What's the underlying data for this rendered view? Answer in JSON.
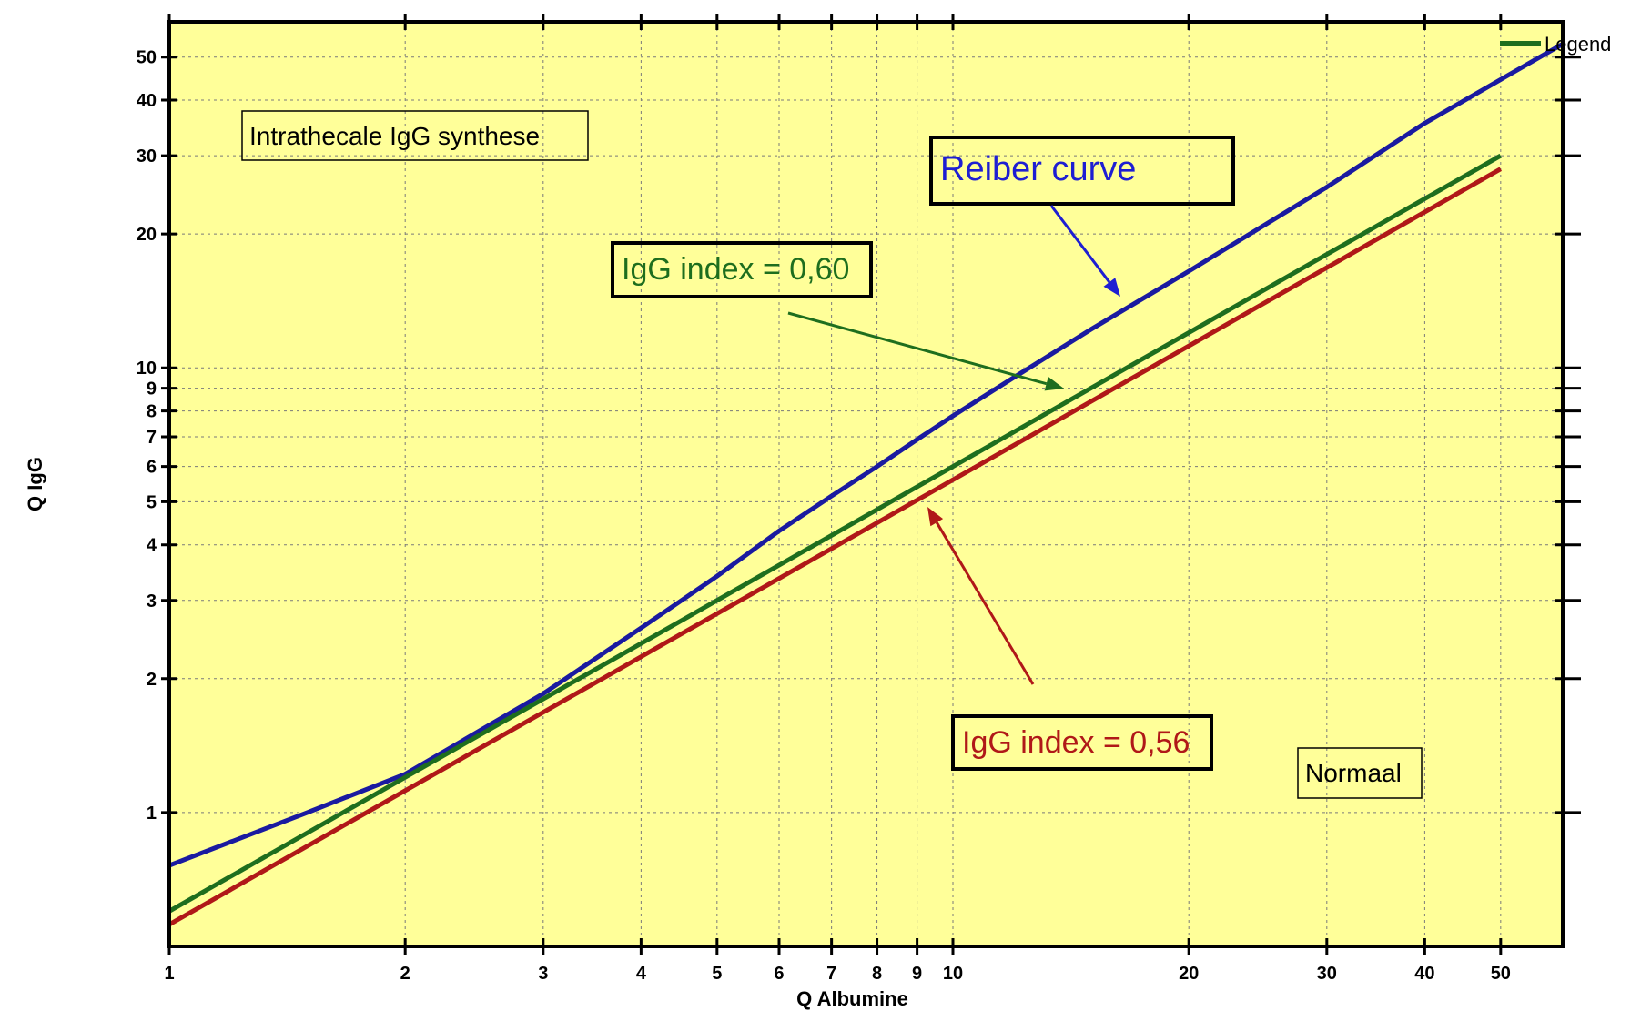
{
  "chart_data": {
    "type": "line",
    "xlabel": "Q Albumine",
    "ylabel": "Q IgG",
    "xscale": "log",
    "yscale": "log",
    "xlim": [
      1,
      60
    ],
    "ylim": [
      0.5,
      60
    ],
    "grid": true,
    "legend_position": "top-right",
    "legend_label": "Legend",
    "background_color": "#ffff99",
    "x_ticks": [
      1,
      2,
      3,
      4,
      5,
      6,
      7,
      8,
      9,
      10,
      20,
      30,
      40,
      50
    ],
    "y_ticks": [
      1,
      2,
      3,
      4,
      5,
      6,
      7,
      8,
      9,
      10,
      20,
      30,
      40,
      50
    ],
    "series": [
      {
        "key": "reiber",
        "color": "#1a1aa0",
        "x": [
          1,
          1.5,
          2,
          3,
          4,
          5,
          6,
          7,
          8,
          9,
          10,
          12,
          15,
          20,
          30,
          40,
          50,
          60
        ],
        "y": [
          0.76,
          1.0,
          1.22,
          1.85,
          2.6,
          3.4,
          4.3,
          5.15,
          6.0,
          6.9,
          7.8,
          9.55,
          12.2,
          16.5,
          25.5,
          35.5,
          44.5,
          53.5
        ]
      },
      {
        "key": "igg060",
        "color": "#1e6e1e",
        "x": [
          1,
          50
        ],
        "y": [
          0.6,
          30
        ]
      },
      {
        "key": "igg056",
        "color": "#b01818",
        "x": [
          1,
          50
        ],
        "y": [
          0.56,
          28
        ]
      }
    ],
    "annotations": {
      "intrathecal": "Intrathecale IgG synthese",
      "reiber": "Reiber curve",
      "igg060": "IgG index = 0,60",
      "igg056": "IgG index = 0,56",
      "normal": "Normaal"
    },
    "annotation_colors": {
      "intrathecal": "#000000",
      "reiber": "#1e1ed2",
      "igg060": "#1e6e1e",
      "igg056": "#b01818",
      "normal": "#000000"
    }
  }
}
